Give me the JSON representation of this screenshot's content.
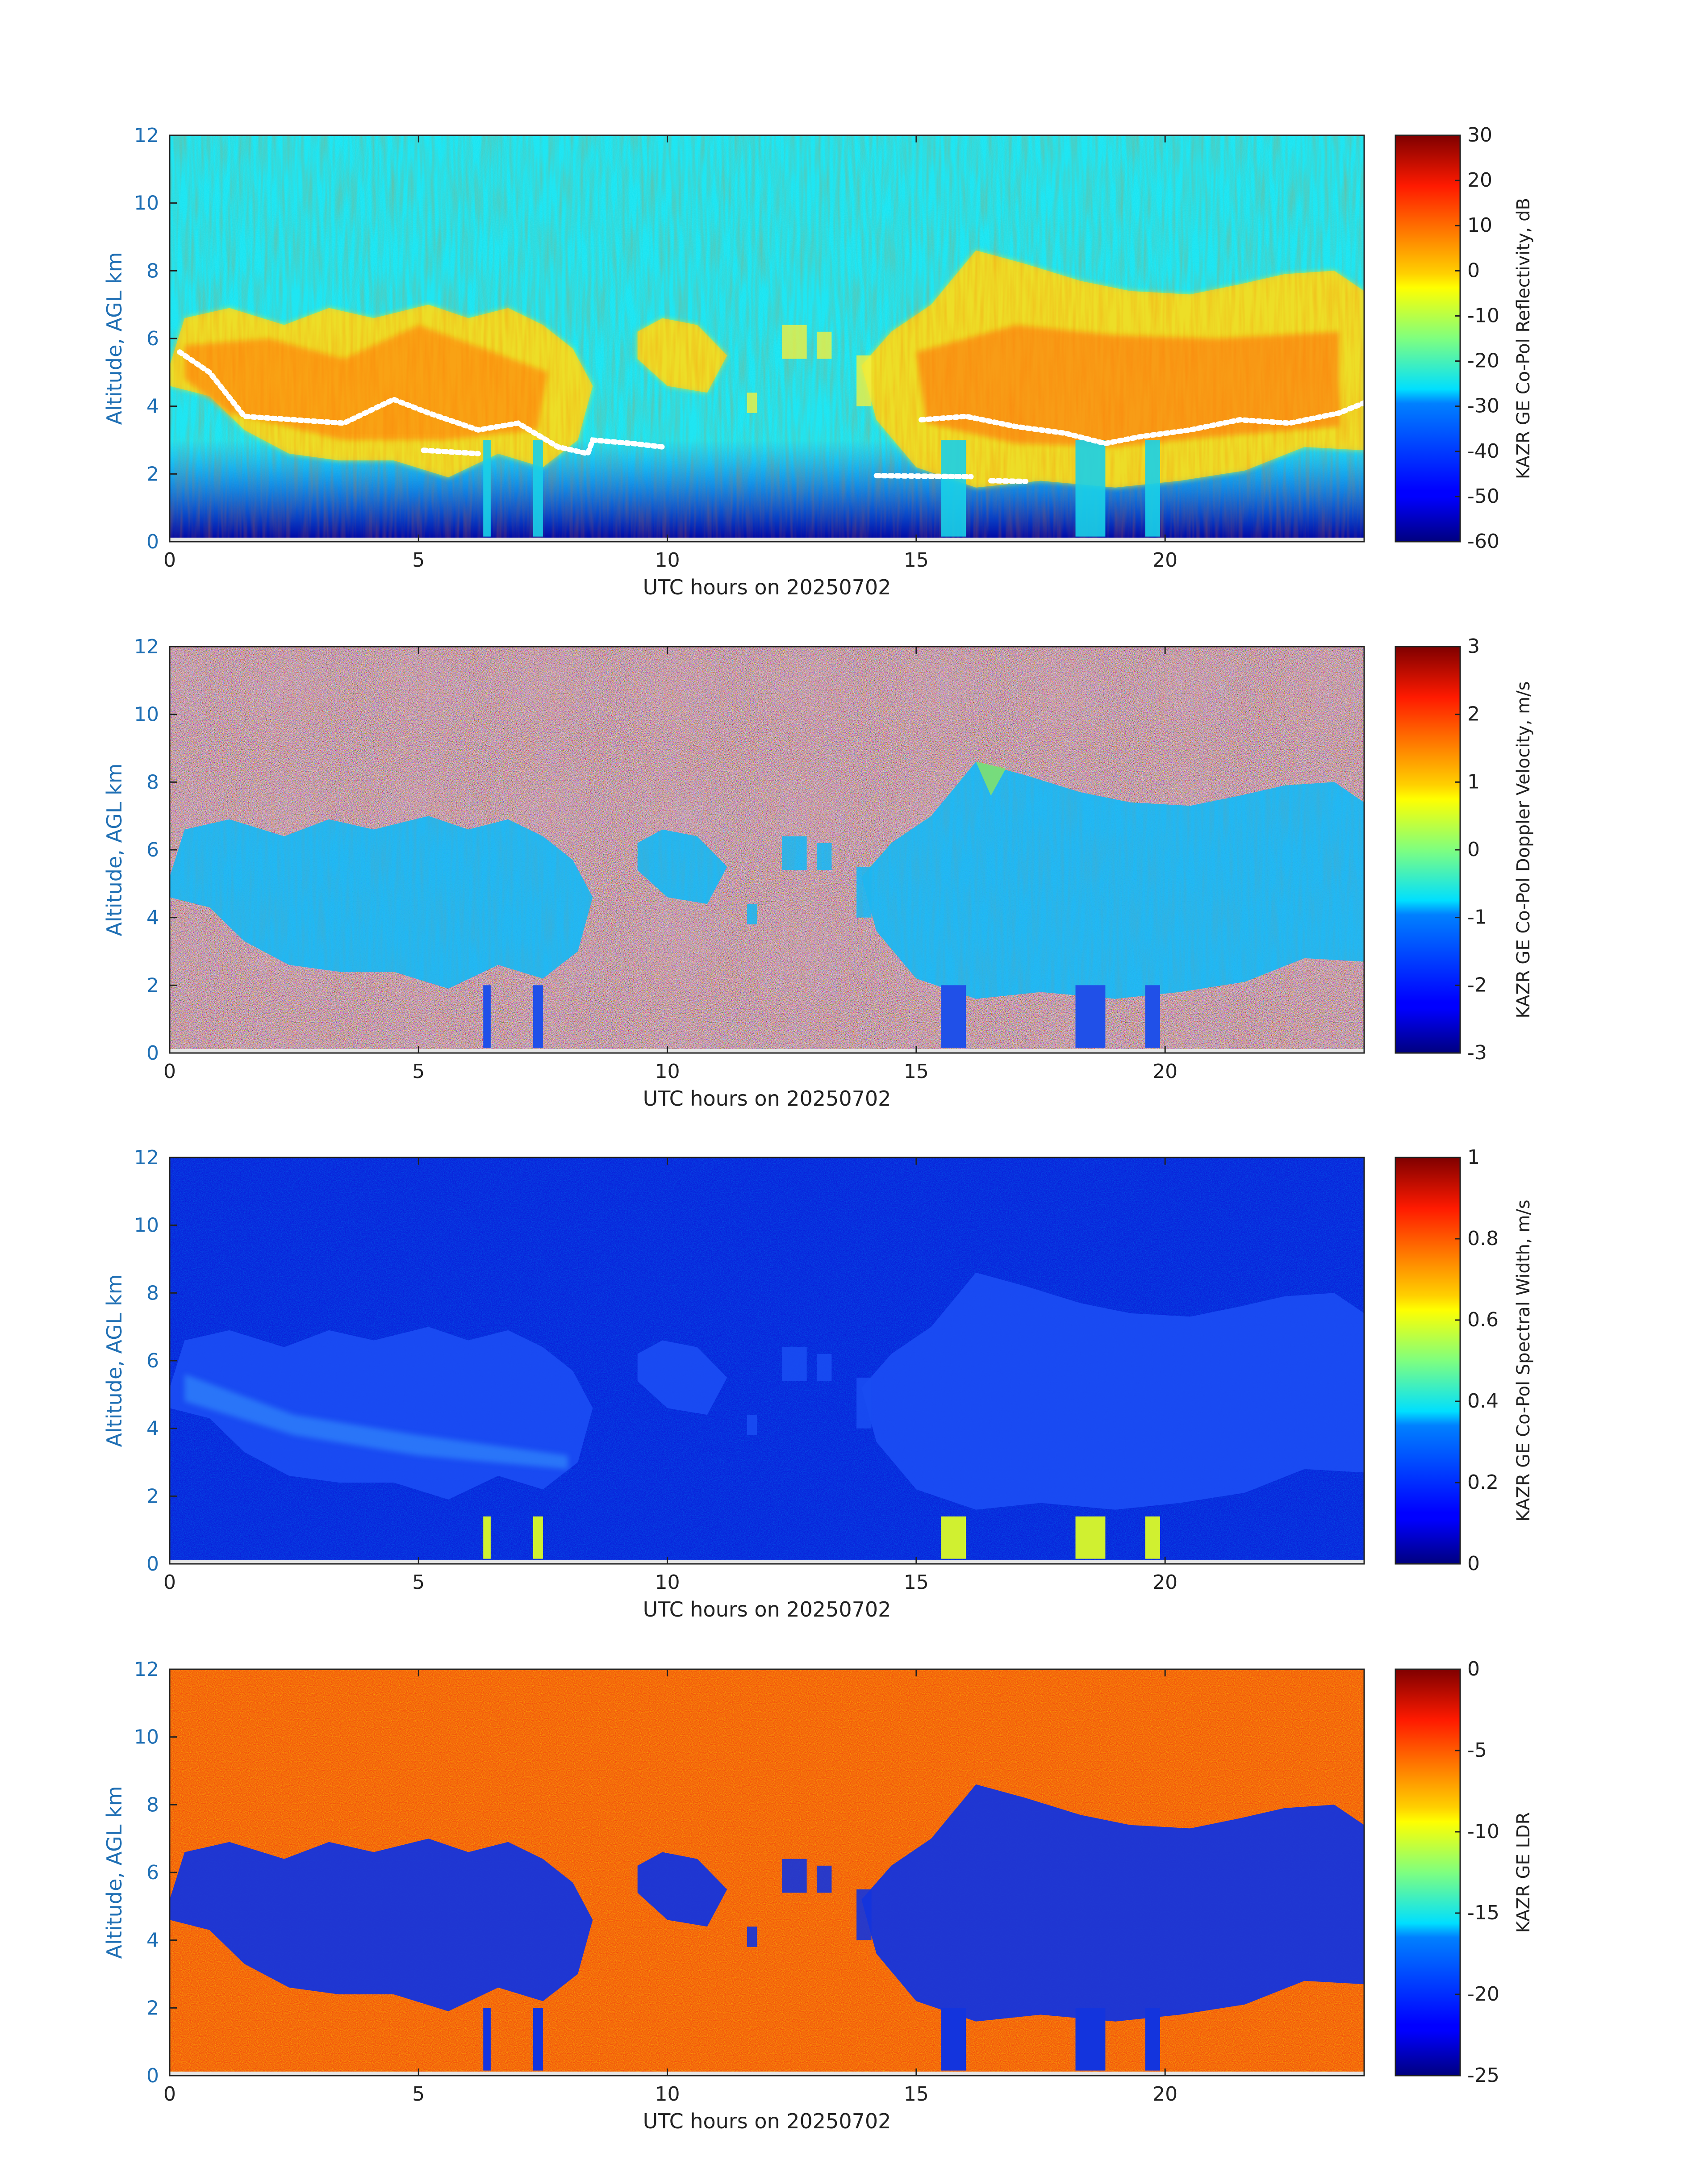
{
  "figure": {
    "date": "20250702"
  },
  "chart_data": [
    {
      "type": "heatmap",
      "id": "reflectivity",
      "xlabel": "UTC hours on 20250702",
      "ylabel": "Altitude, AGL km",
      "xlim": [
        0,
        24
      ],
      "ylim": [
        0,
        12
      ],
      "xticks": [
        "0",
        "5",
        "10",
        "15",
        "20"
      ],
      "yticks": [
        "0",
        "2",
        "4",
        "6",
        "8",
        "10",
        "12"
      ],
      "colorbar": {
        "label": "KAZR GE Co-Pol Reflectivity, dB",
        "range": [
          -60,
          30
        ],
        "ticks": [
          "30",
          "20",
          "10",
          "0",
          "-10",
          "-20",
          "-30",
          "-40",
          "-50",
          "-60"
        ],
        "colormap": "jet"
      },
      "background": "noise-floor cyan aloft, dark blue near surface",
      "cloud_regions": [
        {
          "x": [
            0,
            8.5
          ],
          "y": [
            1.5,
            7.0
          ],
          "level": "-5 to 20 dB"
        },
        {
          "x": [
            9.5,
            11.2
          ],
          "y": [
            4.5,
            6.5
          ],
          "level": "-10 to 0 dB"
        },
        {
          "x": [
            14.0,
            24.0
          ],
          "y": [
            1.5,
            8.5
          ],
          "level": "-10 to 20 dB"
        }
      ],
      "melting_layer_km": [
        5.5,
        3.6,
        3.4,
        2.8,
        2.0,
        3.3,
        3.6,
        3.8
      ]
    },
    {
      "type": "heatmap",
      "id": "doppler_velocity",
      "xlabel": "UTC hours on 20250702",
      "ylabel": "Altitude, AGL km",
      "xlim": [
        0,
        24
      ],
      "ylim": [
        0,
        12
      ],
      "xticks": [
        "0",
        "5",
        "10",
        "15",
        "20"
      ],
      "yticks": [
        "0",
        "2",
        "4",
        "6",
        "8",
        "10",
        "12"
      ],
      "colorbar": {
        "label": "KAZR GE Co-Pol Doppler Velocity, m/s",
        "range": [
          -3,
          3
        ],
        "ticks": [
          "3",
          "2",
          "1",
          "0",
          "-1",
          "-2",
          "-3"
        ],
        "colormap": "jet"
      },
      "background": "random noise",
      "cloud_value": -1.0
    },
    {
      "type": "heatmap",
      "id": "spectral_width",
      "xlabel": "UTC hours on 20250702",
      "ylabel": "Altitude, AGL km",
      "xlim": [
        0,
        24
      ],
      "ylim": [
        0,
        12
      ],
      "xticks": [
        "0",
        "5",
        "10",
        "15",
        "20"
      ],
      "yticks": [
        "0",
        "2",
        "4",
        "6",
        "8",
        "10",
        "12"
      ],
      "colorbar": {
        "label": "KAZR GE Co-Pol Spectral Width, m/s",
        "range": [
          0,
          1
        ],
        "ticks": [
          "1",
          "0.8",
          "0.6",
          "0.4",
          "0.2",
          "0"
        ],
        "colormap": "jet"
      },
      "background": "near 0.05 m/s",
      "cloud_value": 0.12,
      "rain_shafts_value": 0.6
    },
    {
      "type": "heatmap",
      "id": "ldr",
      "xlabel": "UTC hours on 20250702",
      "ylabel": "Altitude, AGL km",
      "xlim": [
        0,
        24
      ],
      "ylim": [
        0,
        12
      ],
      "xticks": [
        "0",
        "5",
        "10",
        "15",
        "20"
      ],
      "yticks": [
        "0",
        "2",
        "4",
        "6",
        "8",
        "10",
        "12"
      ],
      "colorbar": {
        "label": "KAZR GE LDR",
        "range": [
          -25,
          0
        ],
        "ticks": [
          "0",
          "-5",
          "-10",
          "-15",
          "-20",
          "-25"
        ],
        "colormap": "jet"
      },
      "background": "about -3 (noise)",
      "cloud_value": -23
    }
  ]
}
